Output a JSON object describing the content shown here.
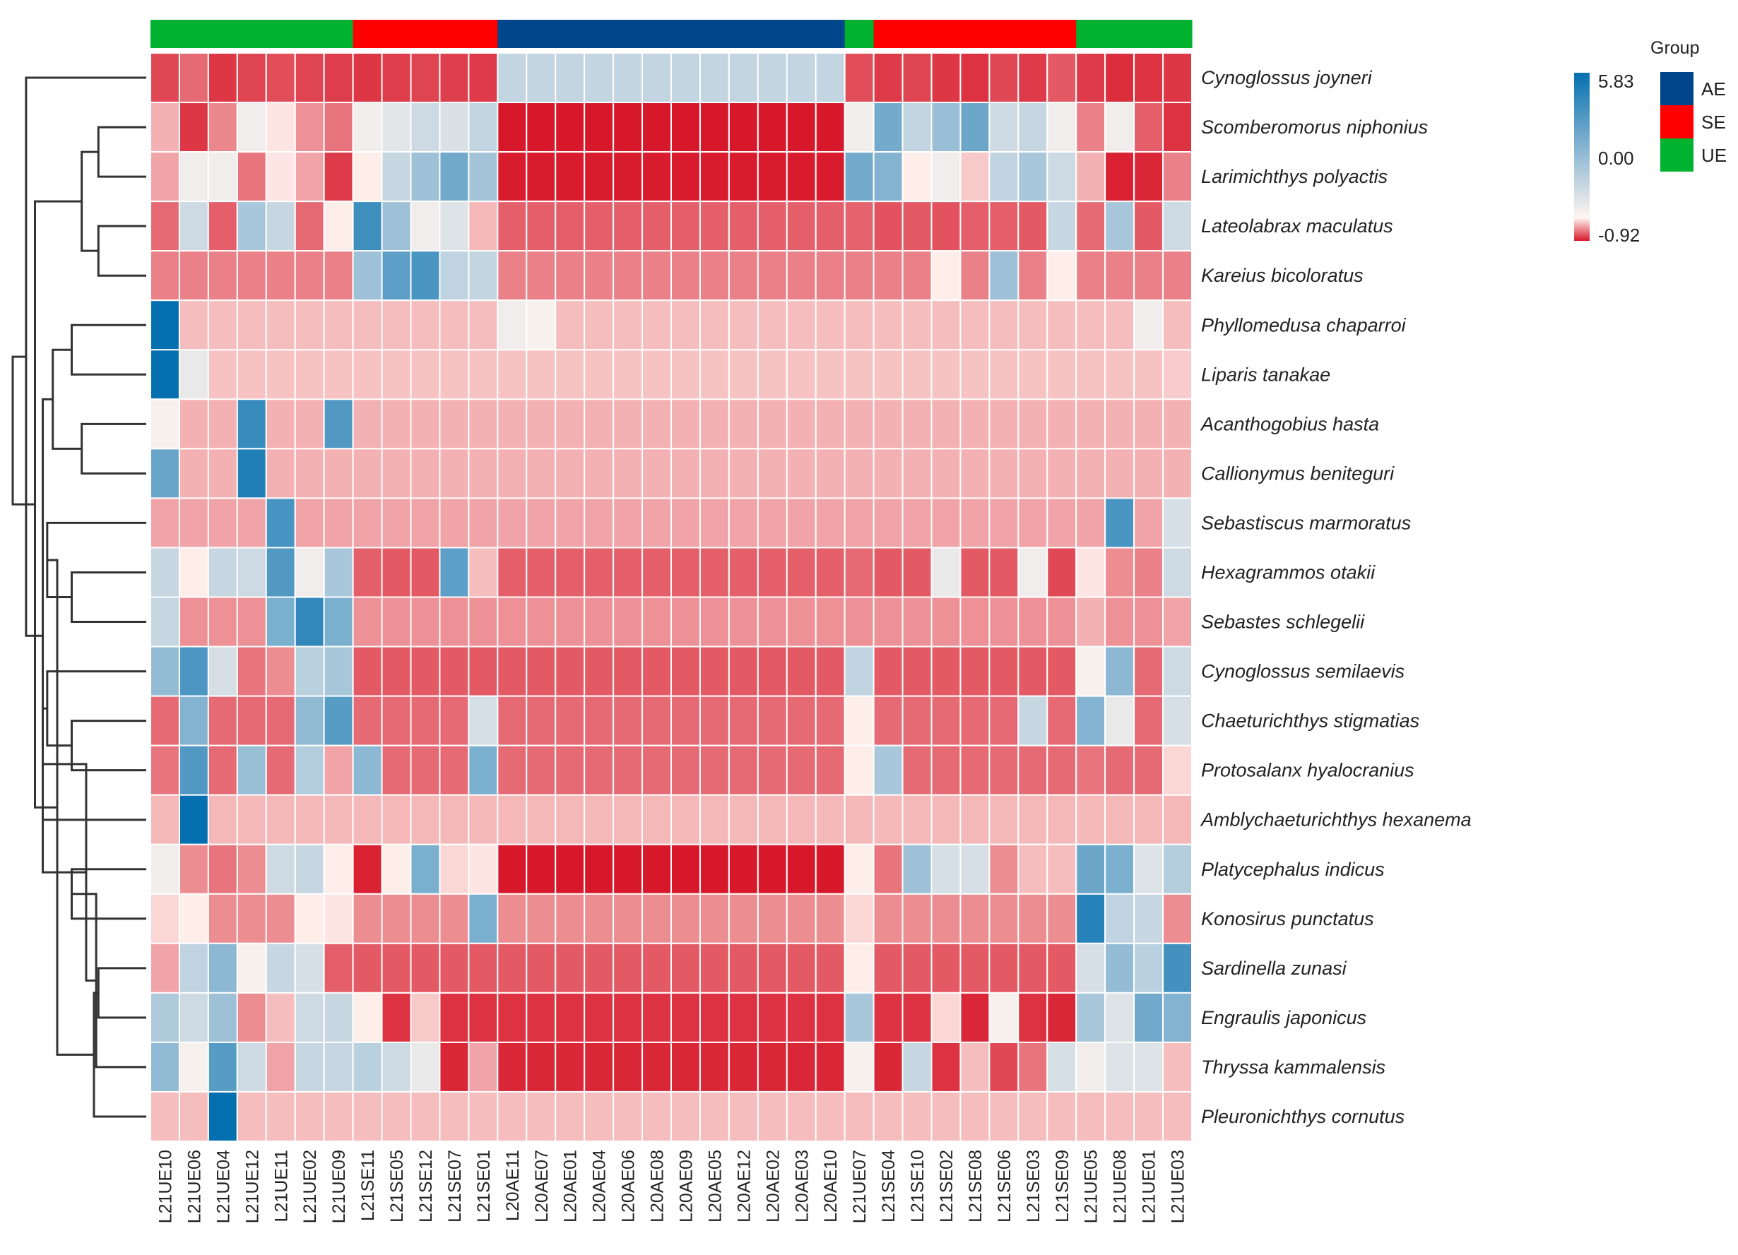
{
  "chart_data": {
    "type": "heatmap",
    "columns": [
      "L21UE10",
      "L21UE06",
      "L21UE04",
      "L21UE12",
      "L21UE11",
      "L21UE02",
      "L21UE09",
      "L21SE11",
      "L21SE05",
      "L21SE12",
      "L21SE07",
      "L21SE01",
      "L20AE11",
      "L20AE07",
      "L20AE01",
      "L20AE04",
      "L20AE06",
      "L20AE08",
      "L20AE09",
      "L20AE05",
      "L20AE12",
      "L20AE02",
      "L20AE03",
      "L20AE10",
      "L21UE07",
      "L21SE04",
      "L21SE10",
      "L21SE02",
      "L21SE08",
      "L21SE06",
      "L21SE03",
      "L21SE09",
      "L21UE05",
      "L21UE08",
      "L21UE01",
      "L21UE03"
    ],
    "column_groups": [
      "UE",
      "UE",
      "UE",
      "UE",
      "UE",
      "UE",
      "UE",
      "SE",
      "SE",
      "SE",
      "SE",
      "SE",
      "AE",
      "AE",
      "AE",
      "AE",
      "AE",
      "AE",
      "AE",
      "AE",
      "AE",
      "AE",
      "AE",
      "AE",
      "UE",
      "SE",
      "SE",
      "SE",
      "SE",
      "SE",
      "SE",
      "SE",
      "UE",
      "UE",
      "UE",
      "UE"
    ],
    "rows": [
      "Cynoglossus joyneri",
      "Scomberomorus niphonius",
      "Larimichthys polyactis",
      "Lateolabrax maculatus",
      "Kareius bicoloratus",
      "Phyllomedusa chaparroi",
      "Liparis tanakae",
      "Acanthogobius hasta",
      "Callionymus beniteguri",
      "Sebastiscus marmoratus",
      "Hexagrammos otakii",
      "Sebastes schlegelii",
      "Cynoglossus semilaevis",
      "Chaeturichthys stigmatias",
      "Protosalanx hyalocranius",
      "Amblychaeturichthys hexanema",
      "Platycephalus indicus",
      "Konosirus punctatus",
      "Sardinella zunasi",
      "Engraulis japonicus",
      "Thryssa kammalensis",
      "Pleuronichthys cornutus"
    ],
    "values": [
      [
        -0.7,
        -0.55,
        -0.78,
        -0.72,
        -0.68,
        -0.72,
        -0.75,
        -0.78,
        -0.75,
        -0.72,
        -0.74,
        -0.76,
        0.55,
        0.55,
        0.55,
        0.55,
        0.55,
        0.55,
        0.55,
        0.55,
        0.55,
        0.55,
        0.55,
        0.55,
        -0.68,
        -0.76,
        -0.72,
        -0.78,
        -0.8,
        -0.7,
        -0.76,
        -0.62,
        -0.76,
        -0.82,
        -0.8,
        -0.78
      ],
      [
        -0.25,
        -0.78,
        -0.42,
        0.05,
        -0.05,
        -0.38,
        -0.5,
        0.05,
        0.15,
        0.4,
        0.25,
        0.55,
        -0.92,
        -0.92,
        -0.92,
        -0.92,
        -0.92,
        -0.92,
        -0.92,
        -0.92,
        -0.92,
        -0.92,
        -0.92,
        -0.92,
        0.05,
        2.2,
        0.55,
        1.3,
        2.4,
        0.4,
        0.5,
        0.05,
        -0.45,
        0.05,
        -0.6,
        -0.8
      ],
      [
        -0.3,
        0.05,
        0.05,
        -0.5,
        -0.05,
        -0.3,
        -0.76,
        -0.02,
        0.5,
        1.2,
        2.3,
        1.1,
        -0.9,
        -0.9,
        -0.9,
        -0.9,
        -0.9,
        -0.9,
        -0.9,
        -0.9,
        -0.9,
        -0.9,
        -0.9,
        -0.9,
        2.2,
        1.8,
        -0.02,
        0.05,
        -0.15,
        0.6,
        1.0,
        0.4,
        -0.25,
        -0.88,
        -0.85,
        -0.45
      ],
      [
        -0.55,
        0.4,
        -0.6,
        1.0,
        0.5,
        -0.55,
        -0.02,
        3.8,
        1.2,
        0.05,
        0.2,
        -0.22,
        -0.6,
        -0.6,
        -0.6,
        -0.6,
        -0.6,
        -0.6,
        -0.6,
        -0.6,
        -0.6,
        -0.6,
        -0.6,
        -0.6,
        -0.58,
        -0.65,
        -0.62,
        -0.65,
        -0.6,
        -0.6,
        -0.62,
        0.5,
        -0.55,
        1.0,
        -0.62,
        0.4
      ],
      [
        -0.45,
        -0.45,
        -0.45,
        -0.45,
        -0.45,
        -0.45,
        -0.45,
        1.2,
        2.8,
        3.4,
        0.6,
        0.55,
        -0.45,
        -0.45,
        -0.45,
        -0.45,
        -0.45,
        -0.45,
        -0.45,
        -0.45,
        -0.45,
        -0.45,
        -0.45,
        -0.45,
        -0.45,
        -0.45,
        -0.45,
        -0.02,
        -0.45,
        1.2,
        -0.45,
        -0.02,
        -0.45,
        -0.45,
        -0.45,
        -0.45
      ],
      [
        5.83,
        -0.2,
        -0.2,
        -0.2,
        -0.2,
        -0.2,
        -0.2,
        -0.2,
        -0.2,
        -0.2,
        -0.2,
        -0.2,
        0.05,
        0.02,
        -0.2,
        -0.2,
        -0.2,
        -0.2,
        -0.2,
        -0.2,
        -0.2,
        -0.2,
        -0.2,
        -0.2,
        -0.2,
        -0.2,
        -0.2,
        -0.2,
        -0.2,
        -0.2,
        -0.2,
        -0.2,
        -0.2,
        -0.2,
        0.05,
        -0.2
      ],
      [
        5.83,
        0.1,
        -0.18,
        -0.18,
        -0.18,
        -0.18,
        -0.18,
        -0.18,
        -0.18,
        -0.18,
        -0.18,
        -0.18,
        -0.18,
        -0.18,
        -0.18,
        -0.18,
        -0.18,
        -0.18,
        -0.18,
        -0.18,
        -0.18,
        -0.18,
        -0.18,
        -0.18,
        -0.18,
        -0.18,
        -0.18,
        -0.18,
        -0.18,
        -0.18,
        -0.18,
        -0.18,
        -0.18,
        -0.18,
        -0.18,
        -0.14
      ],
      [
        0.02,
        -0.25,
        -0.25,
        4.0,
        -0.25,
        -0.25,
        3.2,
        -0.25,
        -0.25,
        -0.25,
        -0.25,
        -0.25,
        -0.25,
        -0.25,
        -0.25,
        -0.25,
        -0.25,
        -0.25,
        -0.25,
        -0.25,
        -0.25,
        -0.25,
        -0.25,
        -0.25,
        -0.25,
        -0.25,
        -0.25,
        -0.25,
        -0.25,
        -0.25,
        -0.25,
        -0.25,
        -0.25,
        -0.25,
        -0.25,
        -0.25
      ],
      [
        2.5,
        -0.25,
        -0.25,
        4.8,
        -0.25,
        -0.25,
        -0.25,
        -0.25,
        -0.25,
        -0.25,
        -0.25,
        -0.25,
        -0.25,
        -0.25,
        -0.25,
        -0.25,
        -0.25,
        -0.25,
        -0.25,
        -0.25,
        -0.25,
        -0.25,
        -0.25,
        -0.25,
        -0.25,
        -0.25,
        -0.25,
        -0.25,
        -0.25,
        -0.25,
        -0.25,
        -0.25,
        -0.25,
        -0.25,
        -0.25,
        -0.25
      ],
      [
        -0.3,
        -0.3,
        -0.3,
        -0.3,
        3.5,
        -0.3,
        -0.3,
        -0.3,
        -0.3,
        -0.3,
        -0.3,
        -0.3,
        -0.3,
        -0.3,
        -0.3,
        -0.3,
        -0.3,
        -0.3,
        -0.3,
        -0.3,
        -0.3,
        -0.3,
        -0.3,
        -0.3,
        -0.3,
        -0.3,
        -0.3,
        -0.3,
        -0.3,
        -0.3,
        -0.3,
        -0.3,
        -0.3,
        3.4,
        -0.3,
        0.3
      ],
      [
        0.5,
        -0.02,
        0.5,
        0.4,
        3.2,
        0.05,
        1.0,
        -0.6,
        -0.62,
        -0.62,
        2.8,
        -0.2,
        -0.6,
        -0.6,
        -0.6,
        -0.6,
        -0.6,
        -0.6,
        -0.6,
        -0.6,
        -0.6,
        -0.6,
        -0.6,
        -0.6,
        -0.55,
        -0.62,
        -0.62,
        0.1,
        -0.62,
        -0.62,
        0.05,
        -0.7,
        -0.05,
        -0.4,
        -0.45,
        0.4
      ],
      [
        0.5,
        -0.38,
        -0.38,
        -0.38,
        2.0,
        4.2,
        2.0,
        -0.38,
        -0.38,
        -0.38,
        -0.38,
        -0.38,
        -0.38,
        -0.38,
        -0.38,
        -0.38,
        -0.38,
        -0.38,
        -0.38,
        -0.38,
        -0.38,
        -0.38,
        -0.38,
        -0.38,
        -0.38,
        -0.38,
        -0.38,
        -0.38,
        -0.38,
        -0.38,
        -0.38,
        -0.38,
        -0.25,
        -0.38,
        -0.38,
        -0.3
      ],
      [
        1.4,
        3.3,
        0.3,
        -0.5,
        -0.4,
        0.7,
        1.0,
        -0.62,
        -0.62,
        -0.62,
        -0.62,
        -0.62,
        -0.62,
        -0.62,
        -0.62,
        -0.62,
        -0.62,
        -0.62,
        -0.62,
        -0.62,
        -0.62,
        -0.62,
        -0.62,
        -0.62,
        0.6,
        -0.62,
        -0.62,
        -0.62,
        -0.62,
        -0.62,
        -0.62,
        -0.62,
        0.02,
        1.6,
        -0.55,
        0.4
      ],
      [
        -0.55,
        1.8,
        -0.55,
        -0.55,
        -0.55,
        1.5,
        3.0,
        -0.55,
        -0.55,
        -0.55,
        -0.55,
        0.3,
        -0.55,
        -0.55,
        -0.55,
        -0.55,
        -0.55,
        -0.55,
        -0.55,
        -0.55,
        -0.55,
        -0.55,
        -0.55,
        -0.55,
        -0.02,
        -0.55,
        -0.55,
        -0.55,
        -0.55,
        -0.55,
        0.5,
        -0.55,
        1.8,
        0.1,
        -0.55,
        0.3
      ],
      [
        -0.5,
        3.2,
        -0.55,
        1.3,
        -0.55,
        0.8,
        -0.3,
        1.6,
        -0.55,
        -0.55,
        -0.55,
        2.0,
        -0.55,
        -0.55,
        -0.55,
        -0.55,
        -0.55,
        -0.55,
        -0.55,
        -0.55,
        -0.55,
        -0.55,
        -0.55,
        -0.55,
        -0.02,
        1.0,
        -0.55,
        -0.55,
        -0.55,
        -0.55,
        -0.55,
        -0.55,
        -0.5,
        -0.55,
        -0.55,
        -0.1
      ],
      [
        -0.22,
        5.83,
        -0.22,
        -0.22,
        -0.22,
        -0.22,
        -0.22,
        -0.22,
        -0.22,
        -0.22,
        -0.22,
        -0.22,
        -0.22,
        -0.22,
        -0.22,
        -0.22,
        -0.22,
        -0.22,
        -0.22,
        -0.22,
        -0.22,
        -0.22,
        -0.22,
        -0.22,
        -0.22,
        -0.22,
        -0.22,
        -0.22,
        -0.22,
        -0.22,
        -0.22,
        -0.22,
        -0.22,
        -0.22,
        -0.22,
        -0.22
      ],
      [
        0.05,
        -0.4,
        -0.5,
        -0.4,
        0.4,
        0.5,
        -0.02,
        -0.88,
        -0.02,
        2.0,
        -0.1,
        -0.05,
        -0.92,
        -0.92,
        -0.92,
        -0.92,
        -0.92,
        -0.92,
        -0.92,
        -0.92,
        -0.92,
        -0.92,
        -0.92,
        -0.92,
        -0.02,
        -0.5,
        1.2,
        0.3,
        0.3,
        -0.4,
        -0.2,
        -0.2,
        2.4,
        2.0,
        0.2,
        0.8
      ],
      [
        -0.1,
        -0.02,
        -0.4,
        -0.4,
        -0.4,
        -0.02,
        -0.05,
        -0.4,
        -0.4,
        -0.4,
        -0.4,
        2.0,
        -0.4,
        -0.4,
        -0.4,
        -0.4,
        -0.4,
        -0.4,
        -0.4,
        -0.4,
        -0.4,
        -0.4,
        -0.4,
        -0.4,
        -0.1,
        -0.4,
        -0.4,
        -0.4,
        -0.4,
        -0.4,
        -0.4,
        -0.4,
        4.6,
        0.6,
        0.5,
        -0.4
      ],
      [
        -0.3,
        0.6,
        1.6,
        0.02,
        0.5,
        0.3,
        -0.6,
        -0.62,
        -0.62,
        -0.62,
        -0.62,
        -0.62,
        -0.62,
        -0.62,
        -0.62,
        -0.62,
        -0.62,
        -0.62,
        -0.62,
        -0.62,
        -0.62,
        -0.62,
        -0.62,
        -0.62,
        -0.02,
        -0.62,
        -0.62,
        -0.62,
        -0.62,
        -0.62,
        -0.62,
        -0.62,
        0.3,
        1.4,
        0.7,
        3.6
      ],
      [
        0.9,
        0.4,
        1.2,
        -0.4,
        -0.2,
        0.4,
        0.5,
        -0.02,
        -0.8,
        -0.15,
        -0.8,
        -0.8,
        -0.8,
        -0.8,
        -0.8,
        -0.8,
        -0.8,
        -0.8,
        -0.8,
        -0.8,
        -0.8,
        -0.8,
        -0.8,
        -0.8,
        1.0,
        -0.8,
        -0.8,
        -0.1,
        -0.85,
        0.02,
        -0.8,
        -0.85,
        1.0,
        0.2,
        2.3,
        1.8
      ],
      [
        1.5,
        0.02,
        3.0,
        0.4,
        -0.3,
        0.5,
        0.5,
        0.7,
        0.4,
        0.1,
        -0.85,
        -0.3,
        -0.85,
        -0.85,
        -0.85,
        -0.85,
        -0.85,
        -0.85,
        -0.85,
        -0.85,
        -0.85,
        -0.85,
        -0.85,
        -0.85,
        0.02,
        -0.85,
        0.5,
        -0.8,
        -0.2,
        -0.7,
        -0.5,
        0.3,
        0.05,
        0.2,
        0.2,
        -0.2
      ],
      [
        -0.2,
        -0.2,
        5.83,
        -0.2,
        -0.2,
        -0.2,
        -0.2,
        -0.2,
        -0.2,
        -0.2,
        -0.2,
        -0.2,
        -0.2,
        -0.2,
        -0.2,
        -0.2,
        -0.2,
        -0.2,
        -0.2,
        -0.2,
        -0.2,
        -0.2,
        -0.2,
        -0.2,
        -0.2,
        -0.2,
        -0.2,
        -0.2,
        -0.2,
        -0.2,
        -0.2,
        -0.2,
        -0.2,
        -0.2,
        -0.2,
        -0.2
      ]
    ],
    "value_range": [
      -0.92,
      5.83
    ],
    "colorbar": {
      "max_label": "5.83",
      "mid_label": "0.00",
      "min_label": "-0.92",
      "colors": [
        "#0570B0",
        "#FFF5F0",
        "#D7182A"
      ]
    },
    "group_legend": {
      "title": "Group",
      "entries": [
        {
          "label": "AE",
          "color": "#00468B"
        },
        {
          "label": "SE",
          "color": "#FF0000"
        },
        {
          "label": "UE",
          "color": "#00B230"
        }
      ]
    },
    "dendrogram": {
      "type": "row",
      "placement": "left",
      "merges": [
        [
          1,
          2
        ],
        [
          3,
          4
        ],
        [
          -1,
          -2
        ],
        [
          5,
          6
        ],
        [
          7,
          8
        ],
        [
          -4,
          -5
        ],
        [
          10,
          11
        ],
        [
          9,
          -7
        ],
        [
          13,
          14
        ],
        [
          12,
          -9
        ],
        [
          -10,
          15
        ],
        [
          16,
          17
        ],
        [
          18,
          19
        ],
        [
          -12,
          20
        ],
        [
          -13,
          21
        ],
        [
          -11,
          -14
        ],
        [
          -8,
          -15
        ],
        [
          -6,
          -16
        ],
        [
          -3,
          -17
        ],
        [
          0,
          -18
        ],
        [
          -19,
          -20
        ]
      ],
      "merge_heights": [
        4.3,
        4.3,
        5.8,
        6.7,
        5.8,
        8.4,
        6.7,
        8.9,
        6.7,
        8.9,
        9.3,
        6.7,
        4.3,
        4.5,
        4.7,
        5.4,
        8.0,
        9.3,
        10.0,
        10.8,
        12.0
      ]
    }
  }
}
